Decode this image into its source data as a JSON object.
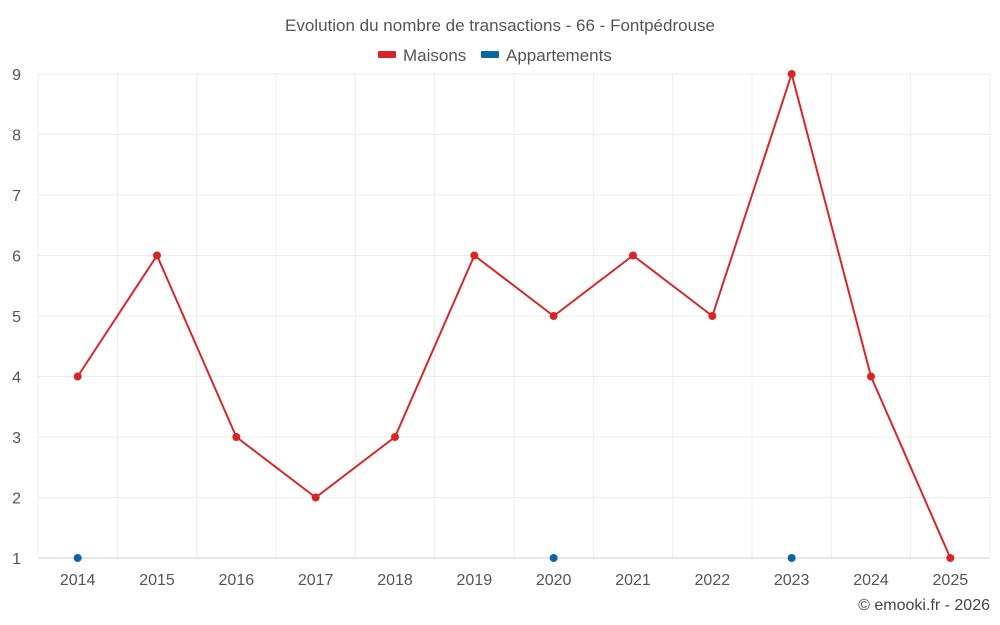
{
  "chart_data": {
    "type": "line",
    "title": "Evolution du nombre de transactions - 66 - Fontpédrouse",
    "xlabel": "",
    "ylabel": "",
    "x": [
      "2014",
      "2015",
      "2016",
      "2017",
      "2018",
      "2019",
      "2020",
      "2021",
      "2022",
      "2023",
      "2024",
      "2025"
    ],
    "ylim": [
      1,
      9
    ],
    "yticks": [
      "1",
      "2",
      "3",
      "4",
      "5",
      "6",
      "7",
      "8",
      "9"
    ],
    "grid": true,
    "legend": "top-center",
    "series": [
      {
        "name": "Maisons",
        "color": "#d62728",
        "values": [
          4,
          6,
          3,
          2,
          3,
          6,
          5,
          6,
          5,
          9,
          4,
          1
        ],
        "style": "line-with-markers"
      },
      {
        "name": "Appartements",
        "color": "#08689e",
        "values": [
          1,
          null,
          null,
          null,
          null,
          null,
          1,
          null,
          null,
          1,
          null,
          null
        ],
        "style": "markers"
      }
    ],
    "credit": "© emooki.fr - 2026"
  }
}
